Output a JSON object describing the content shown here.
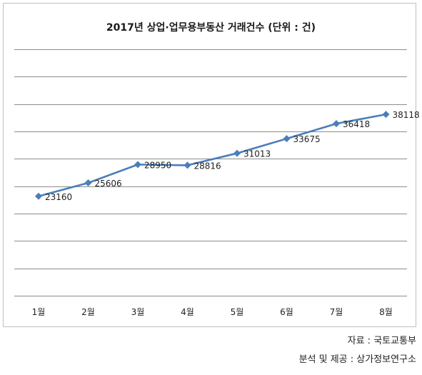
{
  "chart_data": {
    "type": "line",
    "title": "2017년 상업·업무용부동산 거래건수 (단위 : 건)",
    "categories": [
      "1월",
      "2월",
      "3월",
      "4월",
      "5월",
      "6월",
      "7월",
      "8월"
    ],
    "series": [
      {
        "values": [
          23160,
          25606,
          28950,
          28816,
          31013,
          33675,
          36418,
          38118
        ]
      }
    ],
    "ylim": [
      5000,
      50000
    ],
    "y_gridlines": [
      5000,
      10000,
      15000,
      20000,
      25000,
      30000,
      35000,
      40000,
      45000,
      50000
    ],
    "grid": true,
    "y_tick_labels_visible": false,
    "legend": "none",
    "colors": {
      "line": "#4a7ebb",
      "marker": "#4a7ebb",
      "grid": "#8c8c8c"
    }
  },
  "footer": {
    "source_line": "자료 : 국토교통부",
    "analysis_line": "분석 및 제공 : 상가정보연구소"
  }
}
